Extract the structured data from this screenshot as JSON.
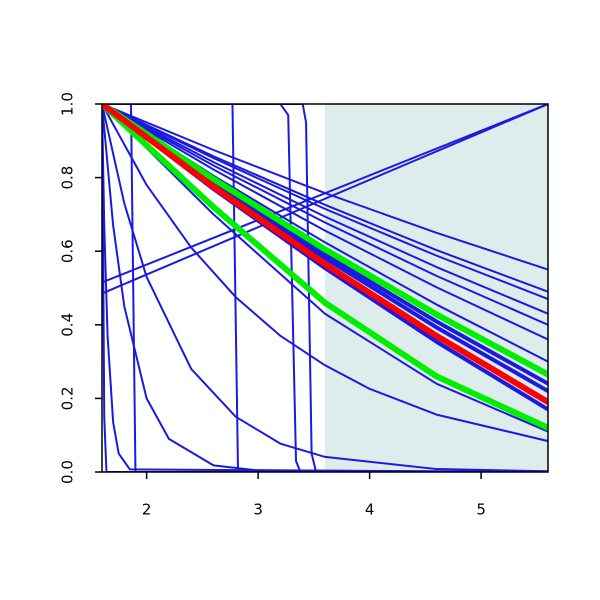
{
  "chart_data": {
    "type": "line",
    "xlim": [
      1.6,
      5.6
    ],
    "ylim": [
      0,
      1
    ],
    "xticks": [
      2,
      3,
      4,
      5
    ],
    "yticks": [
      {
        "value": 0,
        "label": "0.0"
      },
      0.2,
      0.4,
      0.6,
      0.8,
      {
        "value": 1,
        "label": "1.0"
      }
    ],
    "shaded_region": {
      "x": [
        3.6,
        5.6
      ],
      "color": "#dfecec"
    },
    "series": [
      {
        "color": "#1a1ae0",
        "lwd": 1,
        "x": [
          1.6,
          2.6,
          3.6,
          4.6,
          5.6
        ],
        "values": [
          1,
          0.875,
          0.758,
          0.65,
          0.55
        ]
      },
      {
        "color": "#1a1ae0",
        "lwd": 1,
        "x": [
          1.6,
          2.6,
          3.6,
          4.6,
          5.6
        ],
        "values": [
          1,
          0.858,
          0.726,
          0.603,
          0.49
        ]
      },
      {
        "color": "#1a1ae0",
        "lwd": 1,
        "x": [
          1.6,
          2.6,
          3.6,
          4.6,
          5.6
        ],
        "values": [
          1,
          0.853,
          0.715,
          0.588,
          0.47
        ]
      },
      {
        "color": "#1a1ae0",
        "lwd": 1,
        "x": [
          1.6,
          2.6,
          3.6,
          4.6,
          5.6
        ],
        "values": [
          1,
          0.842,
          0.694,
          0.557,
          0.43
        ]
      },
      {
        "color": "#1a1ae0",
        "lwd": 1,
        "x": [
          1.6,
          2.6,
          3.6,
          4.6,
          5.6
        ],
        "values": [
          1,
          0.833,
          0.678,
          0.533,
          0.4
        ]
      },
      {
        "color": "#1a1ae0",
        "lwd": 1,
        "x": [
          1.6,
          2.6,
          3.6,
          4.6,
          5.6
        ],
        "values": [
          1,
          0.822,
          0.656,
          0.502,
          0.36
        ]
      },
      {
        "color": "#1a1ae0",
        "lwd": 1,
        "x": [
          1.6,
          2.6,
          3.6,
          4.6,
          5.6
        ],
        "values": [
          1,
          0.805,
          0.624,
          0.455,
          0.3
        ]
      },
      {
        "color": "#1a1ae0",
        "lwd": 1,
        "x": [
          1.6,
          2.6,
          3.6,
          4.6,
          5.6
        ],
        "values": [
          1,
          0.797,
          0.608,
          0.432,
          0.27
        ]
      },
      {
        "color": "#1a1ae0",
        "lwd": 2,
        "x": [
          1.6,
          2.6,
          3.6,
          4.6,
          5.6
        ],
        "values": [
          1,
          0.789,
          0.591,
          0.409,
          0.24
        ]
      },
      {
        "color": "#1a1ae0",
        "lwd": 2,
        "x": [
          1.6,
          2.6,
          3.6,
          4.6,
          5.6
        ],
        "values": [
          1,
          0.783,
          0.581,
          0.393,
          0.22
        ]
      },
      {
        "color": "#1a1ae0",
        "lwd": 2,
        "x": [
          1.6,
          2.6,
          3.6,
          4.6,
          5.6
        ],
        "values": [
          1,
          0.769,
          0.554,
          0.354,
          0.17
        ]
      },
      {
        "color": "#1a1ae0",
        "lwd": 1,
        "x": [
          1.6,
          2.6,
          3.6,
          4.6,
          5.6
        ],
        "values": [
          1,
          0.7,
          0.43,
          0.24,
          0.11
        ]
      },
      {
        "color": "#1a1ae0",
        "lwd": 1,
        "x": [
          1.6,
          5.6
        ],
        "values": [
          0.515,
          1
        ]
      },
      {
        "color": "#1a1ae0",
        "lwd": 1,
        "x": [
          1.6,
          5.6
        ],
        "values": [
          0.485,
          1
        ]
      },
      {
        "color": "#1a1ae0",
        "lwd": 1,
        "x": [
          1.6,
          2.0,
          2.4,
          2.8,
          3.2,
          3.6,
          4.0,
          4.6,
          5.6
        ],
        "values": [
          1,
          0.78,
          0.61,
          0.475,
          0.37,
          0.29,
          0.226,
          0.156,
          0.084
        ]
      },
      {
        "color": "#1a1ae0",
        "lwd": 1,
        "x": [
          1.6,
          1.8,
          2.0,
          2.4,
          2.8,
          3.2,
          3.6,
          4.6,
          5.6
        ],
        "values": [
          1,
          0.73,
          0.53,
          0.28,
          0.15,
          0.077,
          0.041,
          0.008,
          0.002
        ]
      },
      {
        "color": "#1a1ae0",
        "lwd": 1,
        "x": [
          1.6,
          1.7,
          1.8,
          2.0,
          2.2,
          2.6,
          3.0,
          5.6
        ],
        "values": [
          1,
          0.67,
          0.45,
          0.2,
          0.09,
          0.018,
          0.004,
          0
        ]
      },
      {
        "color": "#1a1ae0",
        "lwd": 1,
        "x": [
          1.6,
          1.62,
          1.65,
          1.7,
          1.75,
          1.85,
          5.6
        ],
        "values": [
          1,
          0.67,
          0.37,
          0.135,
          0.05,
          0.007,
          0
        ]
      },
      {
        "color": "#1a1ae0",
        "lwd": 1,
        "x": [
          1.6,
          1.61,
          1.62,
          1.64,
          5.6
        ],
        "values": [
          1,
          0.6,
          0.15,
          0,
          0
        ]
      },
      {
        "color": "#1a1ae0",
        "lwd": 1,
        "x": [
          1.6,
          1.86,
          1.9,
          5.6
        ],
        "values": [
          1,
          1,
          0,
          0
        ]
      },
      {
        "color": "#1a1ae0",
        "lwd": 1,
        "x": [
          1.6,
          2.77,
          2.82,
          5.6
        ],
        "values": [
          1,
          1,
          0,
          0
        ]
      },
      {
        "color": "#1a1ae0",
        "lwd": 1,
        "x": [
          1.6,
          3.2,
          3.27,
          3.34,
          3.38,
          5.6
        ],
        "values": [
          1,
          1,
          0.97,
          0.03,
          0,
          0
        ]
      },
      {
        "color": "#1a1ae0",
        "lwd": 1,
        "x": [
          1.6,
          3.4,
          3.43,
          3.48,
          3.52,
          5.6
        ],
        "values": [
          1,
          1,
          0.95,
          0.05,
          0,
          0
        ]
      },
      {
        "color": "#00ee00",
        "lwd": 3,
        "x": [
          1.6,
          2.6,
          3.6,
          4.6,
          5.6
        ],
        "values": [
          1,
          0.796,
          0.605,
          0.428,
          0.265
        ]
      },
      {
        "color": "#00ee00",
        "lwd": 3,
        "x": [
          1.6,
          2.6,
          3.6,
          4.6,
          5.6
        ],
        "values": [
          1,
          0.72,
          0.46,
          0.26,
          0.12
        ]
      },
      {
        "color": "#ff0000",
        "lwd": 3,
        "x": [
          1.6,
          2.6,
          3.6,
          4.6,
          5.6
        ],
        "values": [
          1,
          0.775,
          0.565,
          0.37,
          0.19
        ]
      }
    ]
  }
}
